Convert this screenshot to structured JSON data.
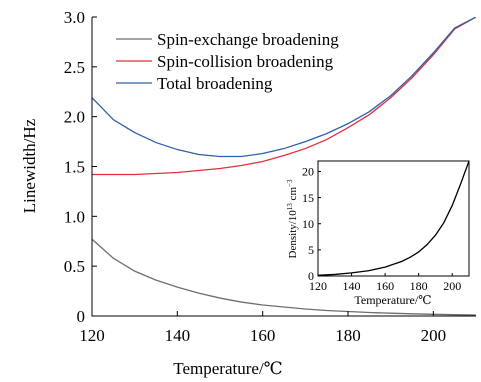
{
  "chart_data": [
    {
      "type": "line",
      "xlabel": "Temperature/℃",
      "ylabel": "Linewidth/Hz",
      "xlim": [
        120,
        210
      ],
      "ylim": [
        0,
        3.0
      ],
      "x_ticks": [
        "120",
        "140",
        "160",
        "180",
        "200"
      ],
      "y_ticks": [
        "0",
        "0.5",
        "1.0",
        "1.5",
        "2.0",
        "2.5",
        "3.0"
      ],
      "legend_position": "top-left",
      "series": [
        {
          "name": "Spin-exchange broadening",
          "color": "#6e6e6e",
          "x": [
            120,
            125,
            130,
            135,
            140,
            145,
            150,
            155,
            160,
            165,
            170,
            175,
            180,
            185,
            190,
            195,
            200,
            205,
            210
          ],
          "y": [
            0.77,
            0.58,
            0.45,
            0.36,
            0.29,
            0.23,
            0.18,
            0.14,
            0.11,
            0.09,
            0.07,
            0.055,
            0.045,
            0.035,
            0.028,
            0.022,
            0.017,
            0.013,
            0.01
          ]
        },
        {
          "name": "Spin-collision broadening",
          "color": "#e0303a",
          "x": [
            120,
            125,
            130,
            135,
            140,
            145,
            150,
            155,
            160,
            165,
            170,
            175,
            180,
            185,
            190,
            195,
            200,
            205,
            210
          ],
          "y": [
            1.42,
            1.42,
            1.42,
            1.43,
            1.44,
            1.46,
            1.48,
            1.51,
            1.55,
            1.61,
            1.68,
            1.77,
            1.89,
            2.02,
            2.19,
            2.39,
            2.62,
            2.88,
            3.0
          ]
        },
        {
          "name": "Total broadening",
          "color": "#2e5fa8",
          "x": [
            120,
            125,
            130,
            135,
            140,
            145,
            150,
            155,
            160,
            165,
            170,
            175,
            180,
            185,
            190,
            195,
            200,
            205,
            210
          ],
          "y": [
            2.19,
            1.97,
            1.84,
            1.74,
            1.67,
            1.62,
            1.6,
            1.6,
            1.63,
            1.68,
            1.75,
            1.83,
            1.93,
            2.05,
            2.21,
            2.41,
            2.64,
            2.89,
            3.0
          ]
        }
      ]
    },
    {
      "type": "line",
      "xlabel": "Temperature/℃",
      "ylabel": "Density/10",
      "ylabel_sup": "13",
      "ylabel_unit": " cm",
      "ylabel_unit_sup": "−3",
      "xlim": [
        120,
        210
      ],
      "ylim": [
        0,
        22
      ],
      "x_ticks": [
        "120",
        "140",
        "160",
        "180",
        "200"
      ],
      "y_ticks": [
        "0",
        "5",
        "10",
        "15",
        "20"
      ],
      "series": [
        {
          "color": "#000000",
          "x": [
            120,
            130,
            140,
            150,
            160,
            170,
            175,
            180,
            185,
            190,
            195,
            200,
            205,
            210
          ],
          "y": [
            0.15,
            0.3,
            0.6,
            1.0,
            1.7,
            2.8,
            3.6,
            4.6,
            6.0,
            7.8,
            10.2,
            13.5,
            17.6,
            22.0
          ]
        }
      ]
    }
  ]
}
